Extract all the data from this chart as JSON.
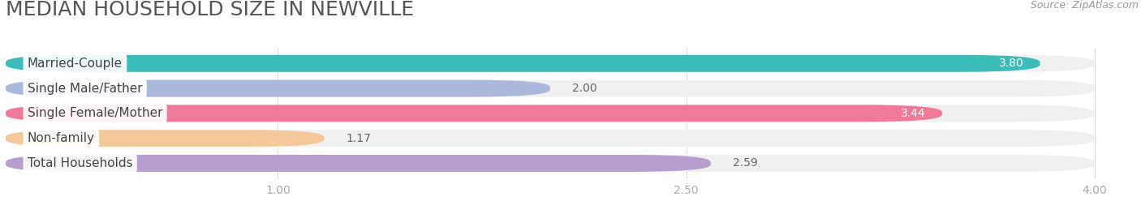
{
  "title": "MEDIAN HOUSEHOLD SIZE IN NEWVILLE",
  "source": "Source: ZipAtlas.com",
  "categories": [
    "Married-Couple",
    "Single Male/Father",
    "Single Female/Mother",
    "Non-family",
    "Total Households"
  ],
  "values": [
    3.8,
    2.0,
    3.44,
    1.17,
    2.59
  ],
  "bar_colors": [
    "#3bbcb8",
    "#aab8dc",
    "#f07898",
    "#f5c89a",
    "#b89ece"
  ],
  "value_inside": [
    true,
    false,
    true,
    false,
    false
  ],
  "xlim": [
    0,
    4.15
  ],
  "xmin": 0,
  "xmax": 4.0,
  "xticks": [
    1.0,
    2.5,
    4.0
  ],
  "background_color": "#ffffff",
  "bar_bg_color": "#f0f0f0",
  "row_bg_color": "#f7f7f7",
  "title_fontsize": 18,
  "source_fontsize": 9,
  "label_fontsize": 11,
  "value_fontsize": 10,
  "tick_fontsize": 10
}
